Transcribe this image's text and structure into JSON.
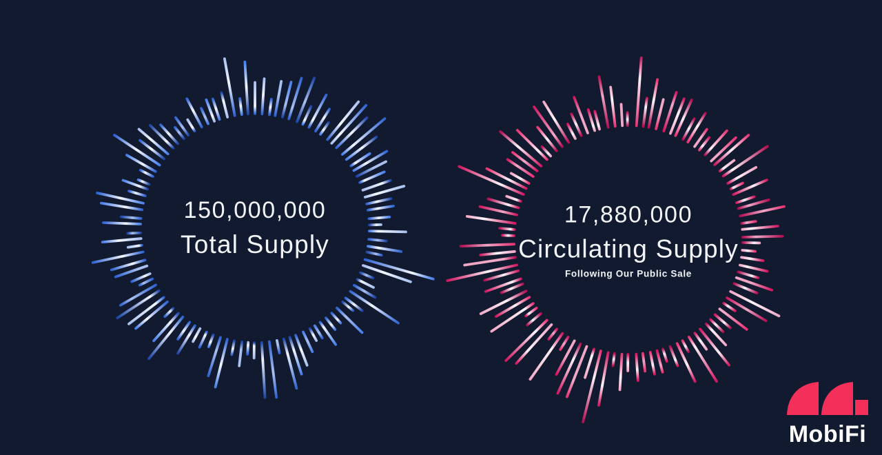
{
  "canvas": {
    "background": "#121a2f",
    "text_color": "#f3f4f8"
  },
  "charts": [
    {
      "name": "total-supply",
      "value": "150,000,000",
      "label": "Total Supply",
      "palette": {
        "deep": "#1e46a8",
        "main": "#2f63d2",
        "bright": "#477ee9",
        "light": "#a9c0ef",
        "shine": "#f2f6ff"
      }
    },
    {
      "name": "circulating-supply",
      "value": "17,880,000",
      "label": "Circulating Supply",
      "sublabel": "Following Our Public Sale",
      "palette": {
        "deep": "#b30f53",
        "main": "#d11761",
        "bright": "#e83273",
        "light": "#f0a8c6",
        "shine": "#fdf3f8"
      }
    }
  ],
  "logo": {
    "text": "MobiFi",
    "mark_color": "#f4305a"
  },
  "chart_data": [
    {
      "type": "bar",
      "layout": "radial-sunburst-decorative",
      "title": "Total Supply",
      "value": 150000000,
      "value_label": "150,000,000"
    },
    {
      "type": "bar",
      "layout": "radial-sunburst-decorative",
      "title": "Circulating Supply",
      "subtitle": "Following Our Public Sale",
      "value": 17880000,
      "value_label": "17,880,000"
    }
  ]
}
